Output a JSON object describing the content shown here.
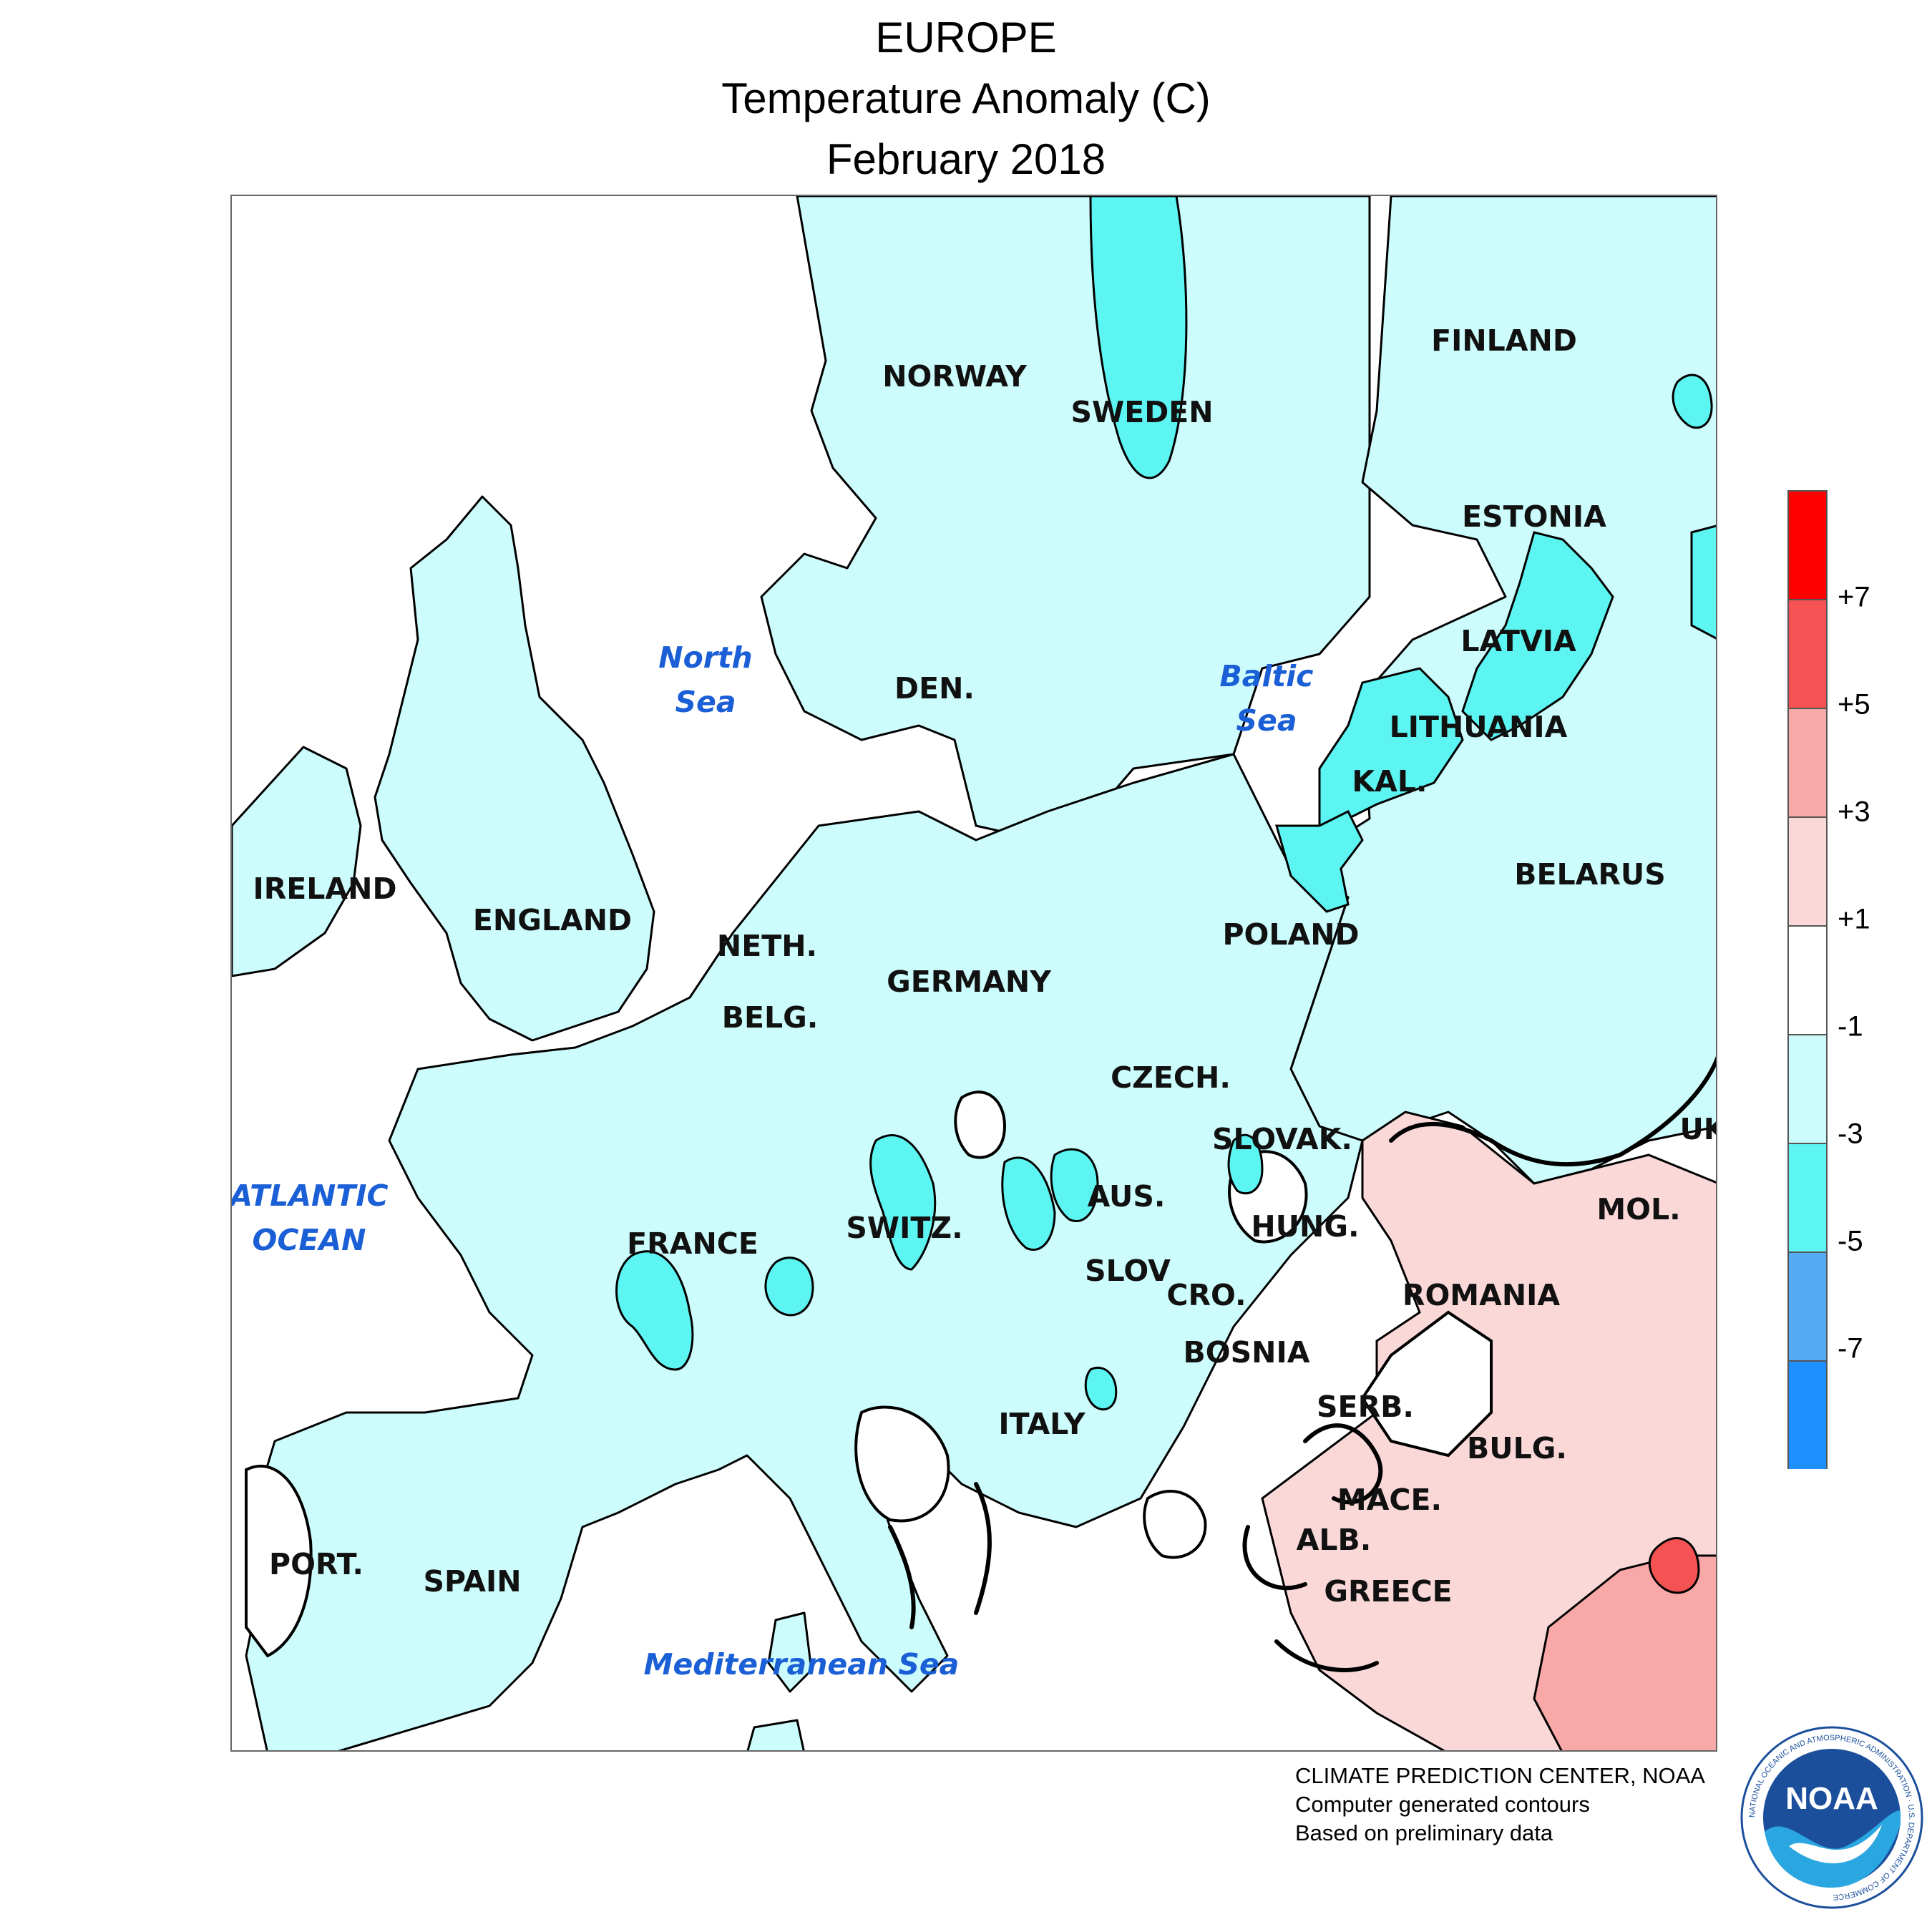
{
  "title": {
    "line1": "EUROPE",
    "line2": "Temperature Anomaly (C)",
    "line3": "February 2018"
  },
  "map": {
    "countries": [
      {
        "id": "finland",
        "label": "FINLAND"
      },
      {
        "id": "norway",
        "label": "NORWAY"
      },
      {
        "id": "sweden",
        "label": "SWEDEN"
      },
      {
        "id": "estonia",
        "label": "ESTONIA"
      },
      {
        "id": "latvia",
        "label": "LATVIA"
      },
      {
        "id": "lithuania",
        "label": "LITHUANIA"
      },
      {
        "id": "kal",
        "label": "KAL."
      },
      {
        "id": "den",
        "label": "DEN."
      },
      {
        "id": "belarus",
        "label": "BELARUS"
      },
      {
        "id": "ireland",
        "label": "IRELAND"
      },
      {
        "id": "england",
        "label": "ENGLAND"
      },
      {
        "id": "neth",
        "label": "NETH."
      },
      {
        "id": "germany",
        "label": "GERMANY"
      },
      {
        "id": "poland",
        "label": "POLAND"
      },
      {
        "id": "belg",
        "label": "BELG."
      },
      {
        "id": "czech",
        "label": "CZECH."
      },
      {
        "id": "slovak",
        "label": "SLOVAK."
      },
      {
        "id": "uk",
        "label": "UK"
      },
      {
        "id": "aus",
        "label": "AUS."
      },
      {
        "id": "hung",
        "label": "HUNG."
      },
      {
        "id": "mol",
        "label": "MOL."
      },
      {
        "id": "switz",
        "label": "SWITZ."
      },
      {
        "id": "france",
        "label": "FRANCE"
      },
      {
        "id": "slov",
        "label": "SLOV"
      },
      {
        "id": "cro",
        "label": "CRO."
      },
      {
        "id": "romania",
        "label": "ROMANIA"
      },
      {
        "id": "bosnia",
        "label": "BOSNIA"
      },
      {
        "id": "serb",
        "label": "SERB."
      },
      {
        "id": "italy",
        "label": "ITALY"
      },
      {
        "id": "bulg",
        "label": "BULG."
      },
      {
        "id": "mace",
        "label": "MACE."
      },
      {
        "id": "alb",
        "label": "ALB."
      },
      {
        "id": "port",
        "label": "PORT."
      },
      {
        "id": "spain",
        "label": "SPAIN"
      },
      {
        "id": "greece",
        "label": "GREECE"
      }
    ],
    "seas": [
      {
        "id": "north-sea",
        "lines": [
          "North",
          "Sea"
        ]
      },
      {
        "id": "baltic-sea",
        "lines": [
          "Baltic",
          "Sea"
        ]
      },
      {
        "id": "atlantic-ocean",
        "lines": [
          "ATLANTIC",
          "OCEAN"
        ]
      },
      {
        "id": "mediterranean-sea",
        "lines": [
          "Mediterranean Sea"
        ]
      }
    ],
    "colors": {
      "sea_label": "#1a5fd6",
      "anomaly_-3_to_-1": "#ccfdfc",
      "anomaly_-5_to_-3": "#5cf5f2",
      "anomaly_+1_to_+3": "#fad8d8",
      "anomaly_+3_to_+5": "#f9a8a8",
      "anomaly_+5_to_+7": "#f55353",
      "neutral": "#ffffff"
    }
  },
  "legend": {
    "bins": [
      {
        "color": "#ff0000"
      },
      {
        "color": "#f55353"
      },
      {
        "color": "#f9a8a8"
      },
      {
        "color": "#fad8d8"
      },
      {
        "color": "#ffffff"
      },
      {
        "color": "#ccfdfc"
      },
      {
        "color": "#5cf5f2"
      },
      {
        "color": "#55aaf4"
      },
      {
        "color": "#1e90ff"
      }
    ],
    "labels": [
      "+7",
      "+5",
      "+3",
      "+1",
      "-1",
      "-3",
      "-5",
      "-7"
    ]
  },
  "credits": {
    "line1": "CLIMATE PREDICTION CENTER, NOAA",
    "line2": "Computer generated contours",
    "line3": "Based on preliminary data"
  },
  "logo": {
    "text": "NOAA",
    "ring_text": "NATIONAL OCEANIC AND ATMOSPHERIC ADMINISTRATION · U.S. DEPARTMENT OF COMMERCE"
  }
}
